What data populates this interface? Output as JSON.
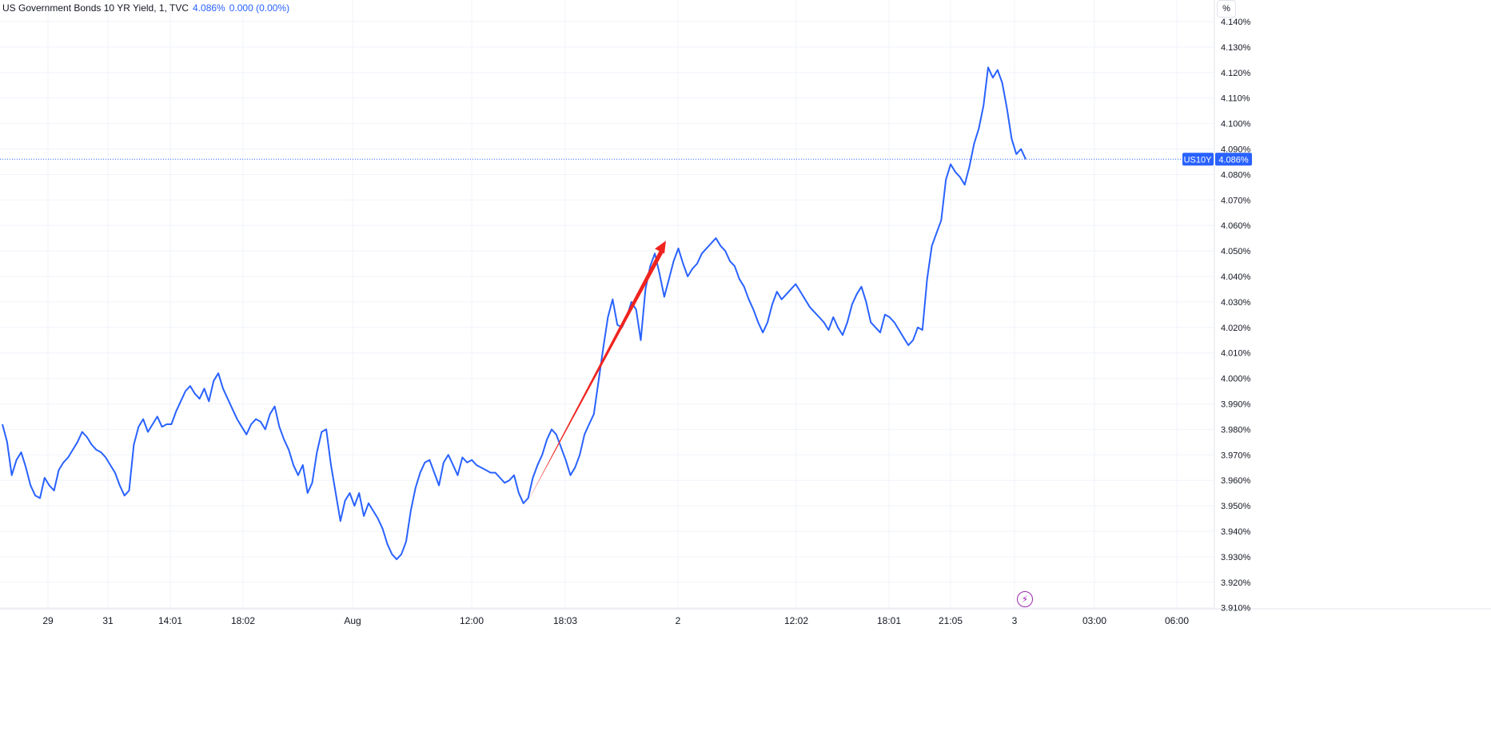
{
  "legend": {
    "symbol": "US Government Bonds 10 YR Yield, 1, TVC",
    "last": "4.086%",
    "change": "0.000 (0.00%)"
  },
  "toolbar": {
    "scale_button": "%"
  },
  "badge": {
    "ticker": "US10Y",
    "price": "4.086%"
  },
  "icons": {
    "replay": "lightning-icon"
  },
  "colors": {
    "series": "#2962ff",
    "annotation": "#f0231e",
    "grid": "#f0f3fa",
    "axis_text": "#131722",
    "badge_bg": "#2962ff"
  },
  "chart_data": {
    "type": "line",
    "title": "US Government Bonds 10 YR Yield, 1, TVC",
    "ylim": [
      3.91,
      4.14
    ],
    "y_unit": "%",
    "grid": true,
    "y_ticks": [
      "4.140%",
      "4.130%",
      "4.120%",
      "4.110%",
      "4.100%",
      "4.090%",
      "4.080%",
      "4.070%",
      "4.060%",
      "4.050%",
      "4.040%",
      "4.030%",
      "4.020%",
      "4.010%",
      "4.000%",
      "3.990%",
      "3.980%",
      "3.970%",
      "3.960%",
      "3.950%",
      "3.940%",
      "3.930%",
      "3.920%",
      "3.910%"
    ],
    "x_ticks": [
      "29",
      "31",
      "14:01",
      "18:02",
      "Aug",
      "12:00",
      "18:03",
      "2",
      "12:02",
      "18:01",
      "21:05",
      "3",
      "03:00",
      "06:00"
    ],
    "series": [
      {
        "values": [
          3.982,
          3.975,
          3.962,
          3.968,
          3.971,
          3.965,
          3.958,
          3.954,
          3.953,
          3.961,
          3.958,
          3.956,
          3.964,
          3.967,
          3.969,
          3.972,
          3.975,
          3.979,
          3.977,
          3.974,
          3.972,
          3.971,
          3.969,
          3.966,
          3.963,
          3.958,
          3.954,
          3.956,
          3.974,
          3.981,
          3.984,
          3.979,
          3.982,
          3.985,
          3.981,
          3.982,
          3.982,
          3.987,
          3.991,
          3.995,
          3.997,
          3.994,
          3.992,
          3.996,
          3.991,
          3.999,
          4.002,
          3.996,
          3.992,
          3.988,
          3.984,
          3.981,
          3.978,
          3.982,
          3.984,
          3.983,
          3.98,
          3.986,
          3.989,
          3.981,
          3.976,
          3.972,
          3.966,
          3.962,
          3.966,
          3.955,
          3.959,
          3.971,
          3.979,
          3.98,
          3.966,
          3.955,
          3.944,
          3.952,
          3.955,
          3.95,
          3.955,
          3.946,
          3.951,
          3.948,
          3.945,
          3.941,
          3.935,
          3.931,
          3.929,
          3.931,
          3.936,
          3.948,
          3.957,
          3.963,
          3.967,
          3.968,
          3.963,
          3.958,
          3.967,
          3.97,
          3.966,
          3.962,
          3.969,
          3.967,
          3.968,
          3.966,
          3.965,
          3.964,
          3.963,
          3.963,
          3.961,
          3.959,
          3.96,
          3.962,
          3.955,
          3.951,
          3.953,
          3.961,
          3.966,
          3.97,
          3.976,
          3.98,
          3.978,
          3.973,
          3.968,
          3.962,
          3.965,
          3.97,
          3.978,
          3.982,
          3.986,
          3.999,
          4.012,
          4.024,
          4.031,
          4.021,
          4.02,
          4.024,
          4.03,
          4.027,
          4.015,
          4.035,
          4.044,
          4.049,
          4.041,
          4.032,
          4.039,
          4.046,
          4.051,
          4.045,
          4.04,
          4.043,
          4.045,
          4.049,
          4.051,
          4.053,
          4.055,
          4.052,
          4.05,
          4.046,
          4.044,
          4.039,
          4.036,
          4.031,
          4.027,
          4.022,
          4.018,
          4.022,
          4.029,
          4.034,
          4.031,
          4.033,
          4.035,
          4.037,
          4.034,
          4.031,
          4.028,
          4.026,
          4.024,
          4.022,
          4.019,
          4.024,
          4.02,
          4.017,
          4.022,
          4.029,
          4.033,
          4.036,
          4.03,
          4.022,
          4.02,
          4.018,
          4.025,
          4.024,
          4.022,
          4.019,
          4.016,
          4.013,
          4.015,
          4.02,
          4.019,
          4.039,
          4.052,
          4.057,
          4.062,
          4.078,
          4.084,
          4.081,
          4.079,
          4.076,
          4.083,
          4.092,
          4.098,
          4.107,
          4.122,
          4.118,
          4.121,
          4.116,
          4.106,
          4.094,
          4.088,
          4.09,
          4.086
        ]
      }
    ],
    "annotations": [
      {
        "type": "arrow",
        "color": "#f0231e",
        "from": [
          3.951
        ],
        "to": [
          4.054
        ]
      }
    ]
  }
}
